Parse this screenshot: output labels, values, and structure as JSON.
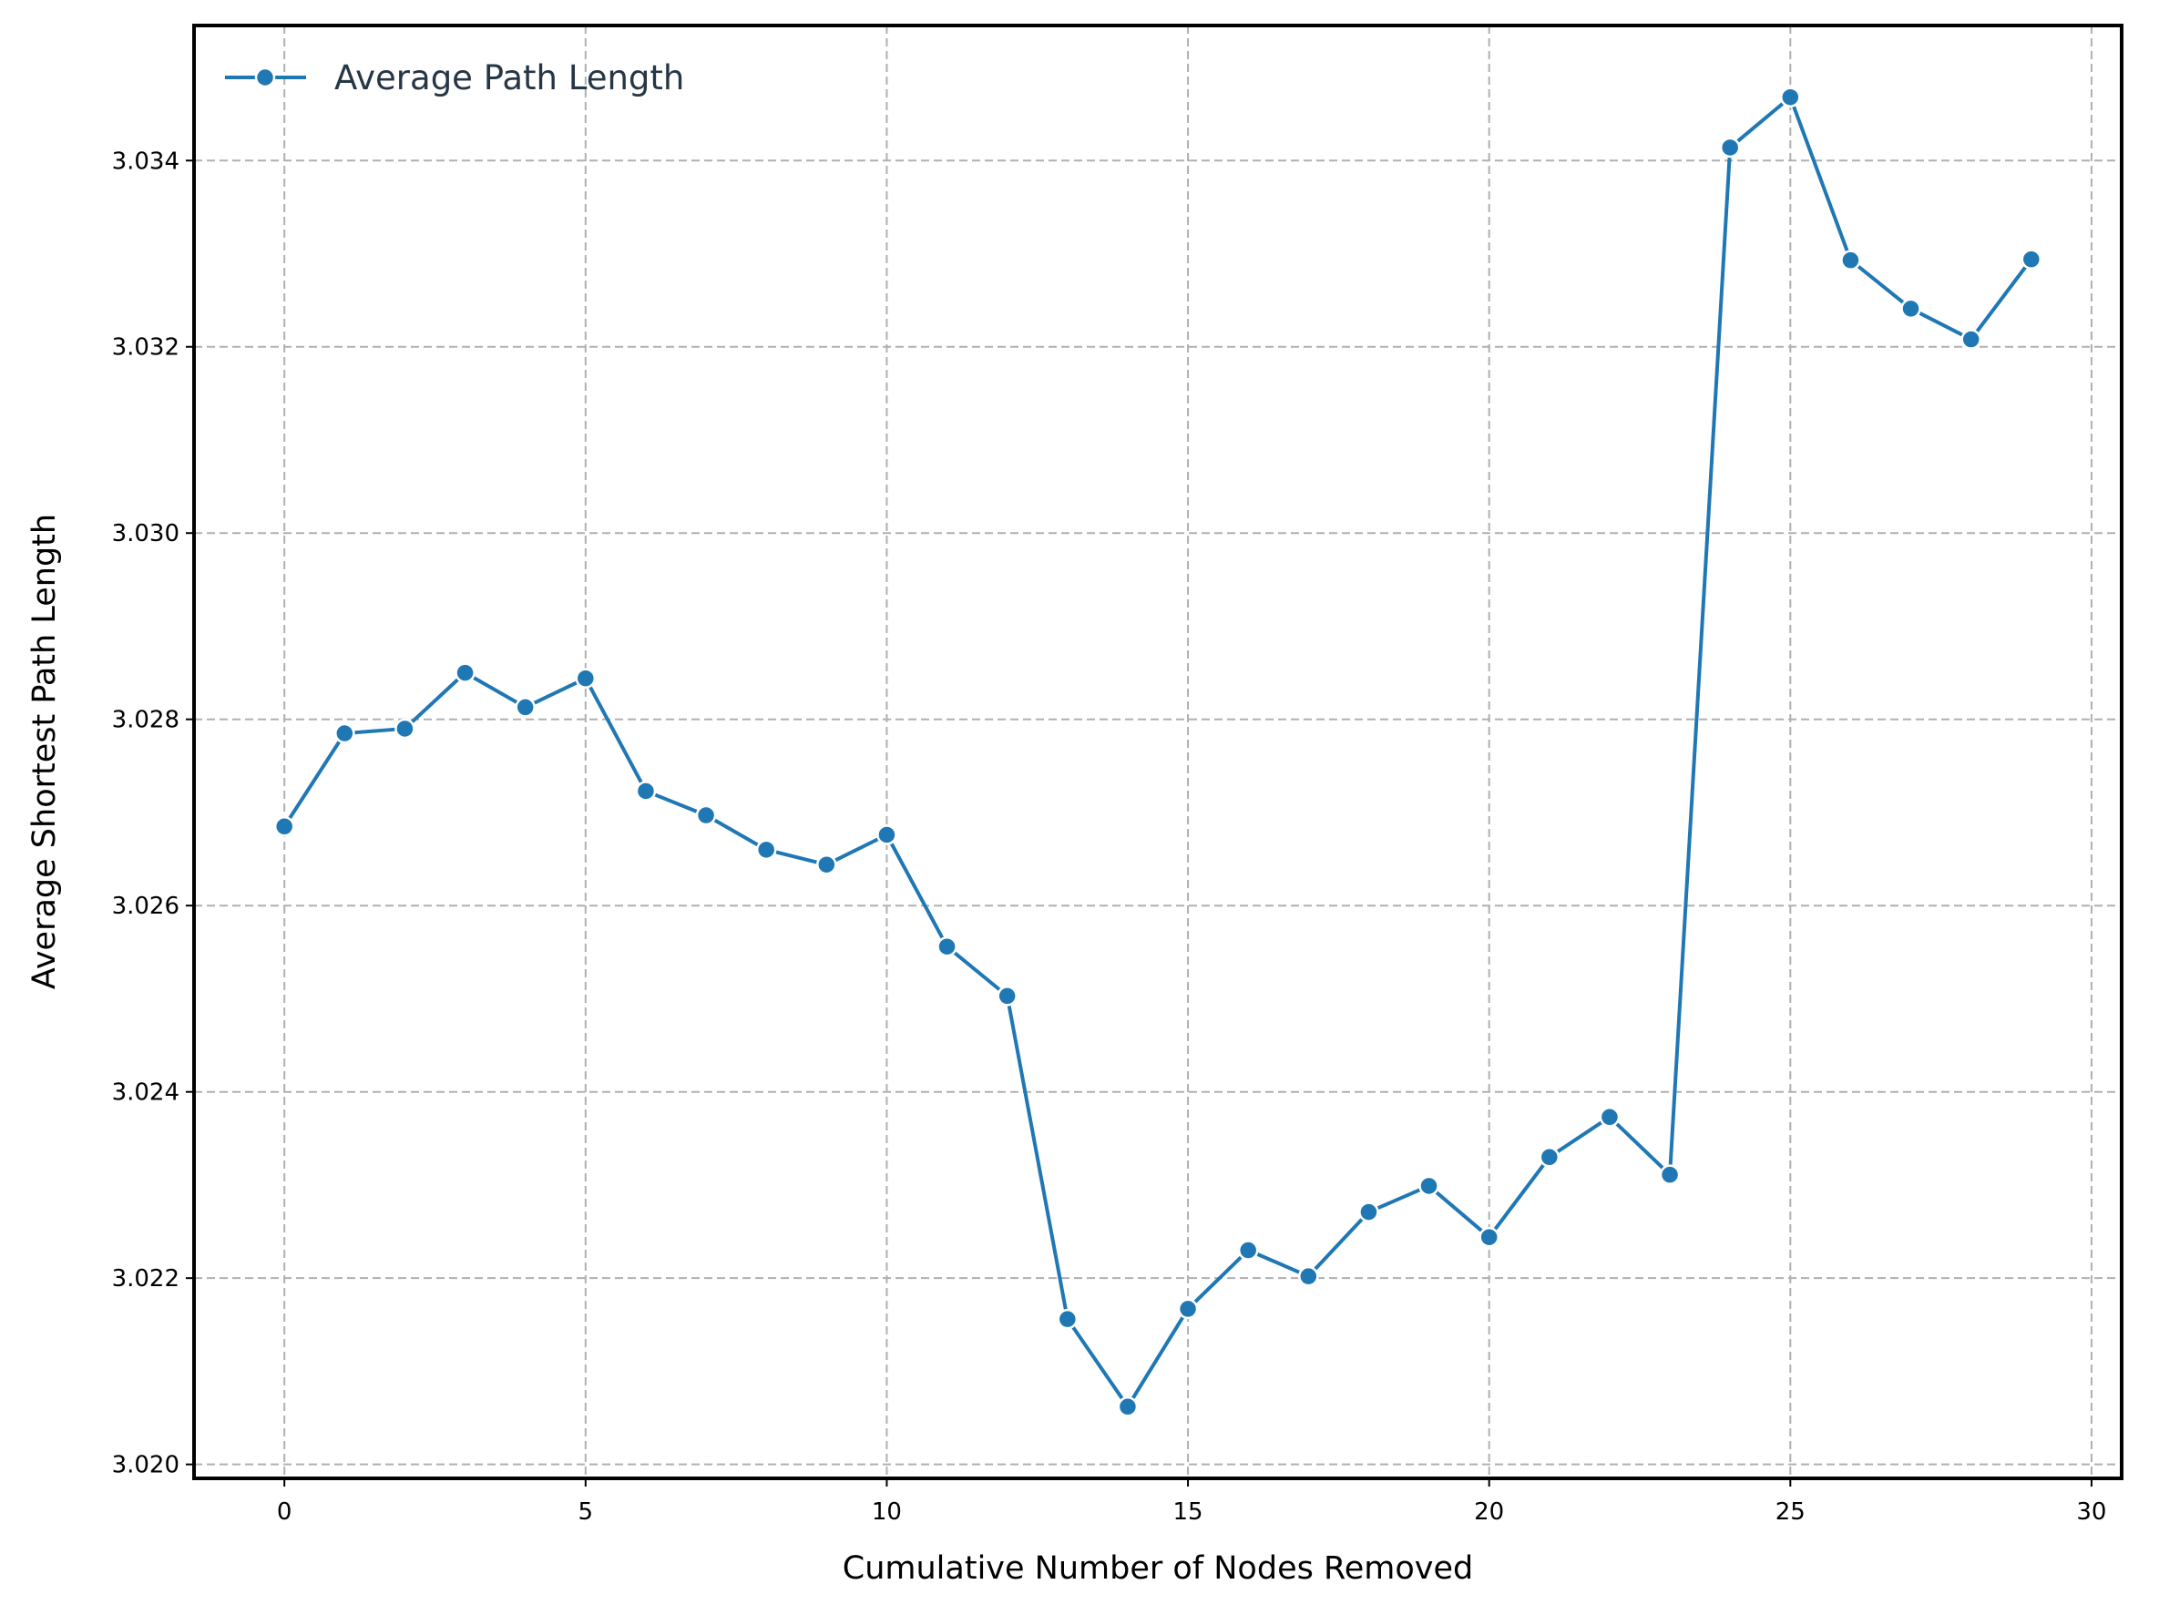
{
  "chart_data": {
    "type": "line",
    "xlabel": "Cumulative Number of Nodes Removed",
    "ylabel": "Average Shortest Path Length",
    "xlim": [
      -1.5,
      30.5
    ],
    "ylim": [
      3.01985,
      3.03545
    ],
    "x_ticks": [
      0,
      5,
      10,
      15,
      20,
      25,
      30
    ],
    "y_ticks": [
      3.02,
      3.022,
      3.024,
      3.026,
      3.028,
      3.03,
      3.032,
      3.034
    ],
    "x_tick_labels": [
      "0",
      "5",
      "10",
      "15",
      "20",
      "25",
      "30"
    ],
    "y_tick_labels": [
      "3.020",
      "3.022",
      "3.024",
      "3.026",
      "3.028",
      "3.030",
      "3.032",
      "3.034"
    ],
    "grid": true,
    "legend_position": "top-left",
    "series": [
      {
        "name": "Average Path Length",
        "color": "#1f77b4",
        "x": [
          0,
          1,
          2,
          3,
          4,
          5,
          6,
          7,
          8,
          9,
          10,
          11,
          12,
          13,
          14,
          15,
          16,
          17,
          18,
          19,
          20,
          21,
          22,
          23,
          24,
          25,
          26,
          27,
          28,
          29
        ],
        "y": [
          3.02685,
          3.02785,
          3.0279,
          3.0285,
          3.02813,
          3.02844,
          3.02723,
          3.02697,
          3.0266,
          3.02644,
          3.02676,
          3.02556,
          3.02503,
          3.02156,
          3.02062,
          3.02167,
          3.0223,
          3.02202,
          3.02271,
          3.02299,
          3.02244,
          3.0233,
          3.02373,
          3.02311,
          3.03414,
          3.03468,
          3.03293,
          3.03241,
          3.03208,
          3.03294
        ]
      }
    ]
  }
}
